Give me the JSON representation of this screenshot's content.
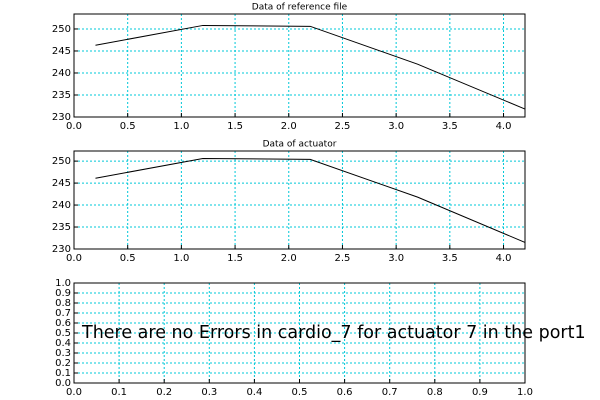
{
  "chart_data": [
    {
      "type": "line",
      "title": "Data of reference file",
      "x": [
        0.2,
        1.2,
        2.2,
        3.2,
        4.2
      ],
      "values": [
        246.3,
        250.8,
        250.6,
        242.0,
        231.8
      ],
      "color": "#000000",
      "xlim": [
        0,
        4.2
      ],
      "ylim": [
        230,
        253.4
      ],
      "xticks": [
        {
          "value": 0,
          "label": "0.0"
        },
        0.5,
        {
          "value": 1,
          "label": "1.0"
        },
        1.5,
        {
          "value": 2,
          "label": "2.0"
        },
        2.5,
        {
          "value": 3,
          "label": "3.0"
        },
        3.5,
        {
          "value": 4,
          "label": "4.0"
        }
      ],
      "yticks": [
        230,
        235,
        240,
        245,
        250
      ],
      "grid": true
    },
    {
      "type": "line",
      "title": "Data of actuator",
      "x": [
        0.2,
        1.2,
        2.2,
        3.2,
        4.2
      ],
      "values": [
        246.1,
        250.6,
        250.4,
        241.8,
        231.5
      ],
      "color": "#000000",
      "xlim": [
        0,
        4.2
      ],
      "ylim": [
        230,
        252.3
      ],
      "xticks": [
        {
          "value": 0,
          "label": "0.0"
        },
        0.5,
        {
          "value": 1,
          "label": "1.0"
        },
        1.5,
        {
          "value": 2,
          "label": "2.0"
        },
        2.5,
        {
          "value": 3,
          "label": "3.0"
        },
        3.5,
        {
          "value": 4,
          "label": "4.0"
        }
      ],
      "yticks": [
        230,
        235,
        240,
        245,
        250
      ],
      "grid": true
    },
    {
      "type": "blank",
      "annotation": "There are no Errors in cardio_7 for actuator 7 in the port1",
      "xlim": [
        0,
        1
      ],
      "ylim": [
        0,
        1
      ],
      "xticks": [
        {
          "value": 0,
          "label": "0.0"
        },
        0.1,
        0.2,
        0.3,
        0.4,
        0.5,
        0.6,
        0.7,
        0.8,
        0.9,
        {
          "value": 1,
          "label": "1.0"
        }
      ],
      "yticks": [
        {
          "value": 0,
          "label": "0.0"
        },
        0.1,
        0.2,
        0.3,
        0.4,
        0.5,
        0.6,
        0.7,
        0.8,
        0.9,
        {
          "value": 1,
          "label": "1.0"
        }
      ],
      "grid": true
    }
  ]
}
